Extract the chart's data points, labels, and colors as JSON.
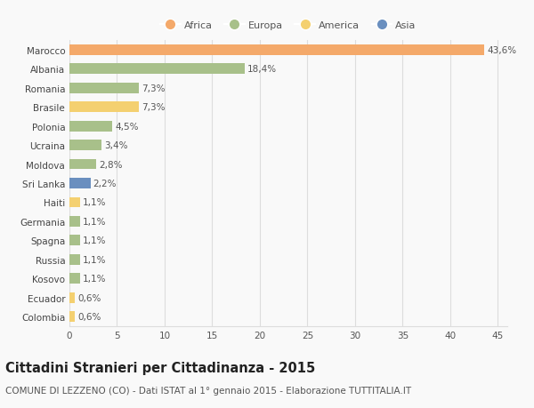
{
  "countries": [
    "Marocco",
    "Albania",
    "Romania",
    "Brasile",
    "Polonia",
    "Ucraina",
    "Moldova",
    "Sri Lanka",
    "Haiti",
    "Germania",
    "Spagna",
    "Russia",
    "Kosovo",
    "Ecuador",
    "Colombia"
  ],
  "values": [
    43.6,
    18.4,
    7.3,
    7.3,
    4.5,
    3.4,
    2.8,
    2.2,
    1.1,
    1.1,
    1.1,
    1.1,
    1.1,
    0.6,
    0.6
  ],
  "labels": [
    "43,6%",
    "18,4%",
    "7,3%",
    "7,3%",
    "4,5%",
    "3,4%",
    "2,8%",
    "2,2%",
    "1,1%",
    "1,1%",
    "1,1%",
    "1,1%",
    "1,1%",
    "0,6%",
    "0,6%"
  ],
  "colors": [
    "#F4A96A",
    "#A8C08A",
    "#A8C08A",
    "#F4D070",
    "#A8C08A",
    "#A8C08A",
    "#A8C08A",
    "#6A8FBF",
    "#F4D070",
    "#A8C08A",
    "#A8C08A",
    "#A8C08A",
    "#A8C08A",
    "#F4D070",
    "#F4D070"
  ],
  "legend": [
    {
      "label": "Africa",
      "color": "#F4A96A"
    },
    {
      "label": "Europa",
      "color": "#A8C08A"
    },
    {
      "label": "America",
      "color": "#F4D070"
    },
    {
      "label": "Asia",
      "color": "#6A8FBF"
    }
  ],
  "title": "Cittadini Stranieri per Cittadinanza - 2015",
  "subtitle": "COMUNE DI LEZZENO (CO) - Dati ISTAT al 1° gennaio 2015 - Elaborazione TUTTITALIA.IT",
  "xlim": [
    0,
    46
  ],
  "xticks": [
    0,
    5,
    10,
    15,
    20,
    25,
    30,
    35,
    40,
    45
  ],
  "bg_color": "#f9f9f9",
  "grid_color": "#dddddd",
  "bar_height": 0.55,
  "label_fontsize": 7.5,
  "tick_fontsize": 7.5,
  "title_fontsize": 10.5,
  "subtitle_fontsize": 7.5
}
